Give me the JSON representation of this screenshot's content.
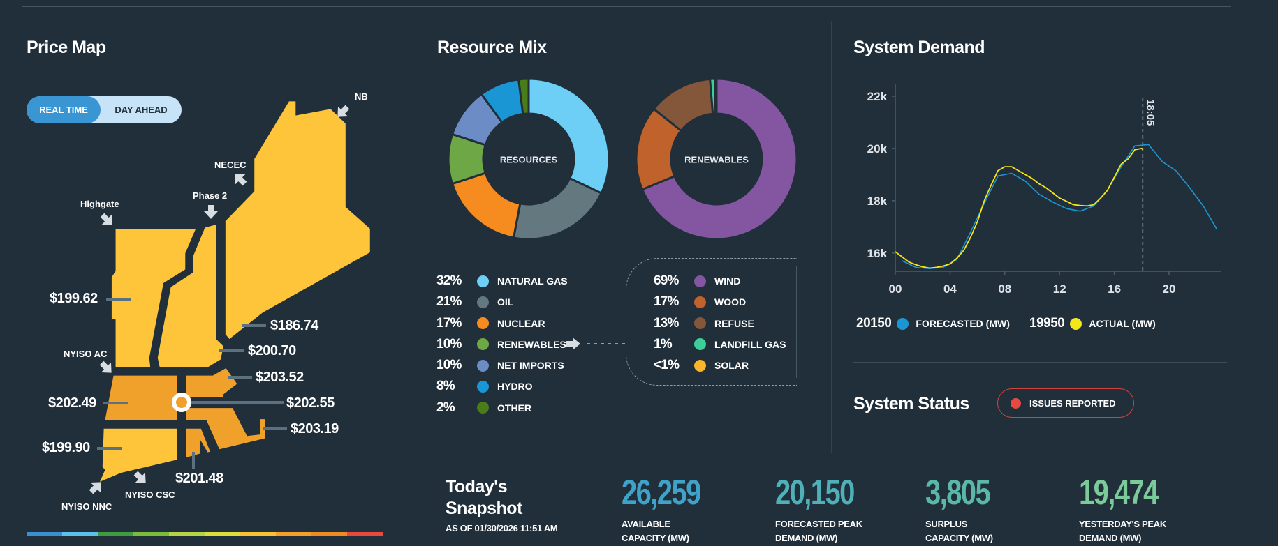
{
  "price_map": {
    "title": "Price Map",
    "toggle": {
      "real_time": "REAL TIME",
      "day_ahead": "DAY AHEAD",
      "active": "REAL TIME"
    },
    "interfaces": {
      "nb": "NB",
      "necec": "NECEC",
      "phase2": "Phase 2",
      "highgate": "Highgate",
      "nyiso_ac": "NYISO AC",
      "nyiso_nnc": "NYISO NNC",
      "nyiso_csc": "NYISO CSC"
    },
    "prices": {
      "vermont": "$199.62",
      "maine": "$186.74",
      "new_hampshire": "$200.70",
      "nema": "$203.52",
      "wcma": "$202.49",
      "hub": "$202.55",
      "sema": "$203.19",
      "connecticut": "$199.90",
      "rhode_island": "$201.48"
    },
    "scale_colors": [
      "#3a8fd0",
      "#5bc0eb",
      "#3f9a40",
      "#7cbb3a",
      "#b5d544",
      "#dede3a",
      "#f7c131",
      "#f2a02a",
      "#ee8a22",
      "#e8493f"
    ]
  },
  "resource_mix": {
    "title": "Resource Mix",
    "resources_label": "RESOURCES",
    "renewables_label": "RENEWABLES",
    "resources": [
      {
        "pct": "32%",
        "name": "NATURAL GAS",
        "value": 32,
        "color": "#6dcff6"
      },
      {
        "pct": "21%",
        "name": "OIL",
        "value": 21,
        "color": "#647880"
      },
      {
        "pct": "17%",
        "name": "NUCLEAR",
        "value": 17,
        "color": "#f68b1f"
      },
      {
        "pct": "10%",
        "name": "RENEWABLES",
        "value": 10,
        "color": "#6ea846"
      },
      {
        "pct": "10%",
        "name": "NET IMPORTS",
        "value": 10,
        "color": "#6b8cc4"
      },
      {
        "pct": "8%",
        "name": "HYDRO",
        "value": 8,
        "color": "#1b96d4"
      },
      {
        "pct": "2%",
        "name": "OTHER",
        "value": 2,
        "color": "#4a7c1a"
      }
    ],
    "renewables": [
      {
        "pct": "69%",
        "name": "WIND",
        "value": 69,
        "color": "#8456a1"
      },
      {
        "pct": "17%",
        "name": "WOOD",
        "value": 17,
        "color": "#c0622c"
      },
      {
        "pct": "13%",
        "name": "REFUSE",
        "value": 13,
        "color": "#85573a"
      },
      {
        "pct": "1%",
        "name": "LANDFILL GAS",
        "value": 1,
        "color": "#3ecf98"
      },
      {
        "pct": "<1%",
        "name": "SOLAR",
        "value": 0.3,
        "color": "#fbb52b"
      }
    ]
  },
  "system_demand": {
    "title": "System Demand",
    "forecast_value": "20150",
    "forecast_label": "FORECASTED (MW)",
    "actual_value": "19950",
    "actual_label": "ACTUAL (MW)",
    "now_label": "18:05",
    "chart_data": {
      "type": "line",
      "x_ticks": [
        "00",
        "04",
        "08",
        "12",
        "16",
        "20"
      ],
      "y_ticks": [
        "16k",
        "18k",
        "20k",
        "22k"
      ],
      "xlim": [
        0,
        24
      ],
      "ylim": [
        15300,
        22000
      ],
      "now_hour": 18.08,
      "series": [
        {
          "name": "FORECASTED (MW)",
          "color": "#1b96d4",
          "points": [
            [
              0.5,
              15700
            ],
            [
              1.5,
              15450
            ],
            [
              2.5,
              15400
            ],
            [
              3.5,
              15450
            ],
            [
              4.5,
              15750
            ],
            [
              5.5,
              16800
            ],
            [
              6.5,
              17900
            ],
            [
              7.5,
              18950
            ],
            [
              8.5,
              19050
            ],
            [
              9.5,
              18750
            ],
            [
              10.5,
              18250
            ],
            [
              11.5,
              17950
            ],
            [
              12.5,
              17700
            ],
            [
              13.5,
              17600
            ],
            [
              14.5,
              17800
            ],
            [
              15.5,
              18400
            ],
            [
              16.5,
              19300
            ],
            [
              17.5,
              20100
            ],
            [
              18.5,
              20150
            ],
            [
              19.5,
              19500
            ],
            [
              20.5,
              19150
            ],
            [
              21.5,
              18500
            ],
            [
              22.5,
              17800
            ],
            [
              23.5,
              16900
            ]
          ]
        },
        {
          "name": "ACTUAL (MW)",
          "color": "#f5e61a",
          "points": [
            [
              0,
              16050
            ],
            [
              0.5,
              15850
            ],
            [
              1,
              15650
            ],
            [
              1.5,
              15550
            ],
            [
              2,
              15470
            ],
            [
              2.5,
              15420
            ],
            [
              3,
              15450
            ],
            [
              3.5,
              15500
            ],
            [
              4,
              15580
            ],
            [
              4.5,
              15800
            ],
            [
              5,
              16100
            ],
            [
              5.5,
              16600
            ],
            [
              6,
              17200
            ],
            [
              6.5,
              18000
            ],
            [
              7,
              18600
            ],
            [
              7.5,
              19150
            ],
            [
              8,
              19300
            ],
            [
              8.5,
              19300
            ],
            [
              9,
              19150
            ],
            [
              9.5,
              19000
            ],
            [
              10,
              18850
            ],
            [
              10.5,
              18650
            ],
            [
              11,
              18500
            ],
            [
              11.5,
              18300
            ],
            [
              12,
              18100
            ],
            [
              12.5,
              17980
            ],
            [
              13,
              17850
            ],
            [
              13.5,
              17820
            ],
            [
              14,
              17800
            ],
            [
              14.5,
              17850
            ],
            [
              15,
              18100
            ],
            [
              15.5,
              18400
            ],
            [
              16,
              18900
            ],
            [
              16.5,
              19400
            ],
            [
              17,
              19600
            ],
            [
              17.5,
              19950
            ],
            [
              18,
              20000
            ],
            [
              18.08,
              19950
            ]
          ]
        }
      ]
    }
  },
  "system_status": {
    "title": "System Status",
    "status": "ISSUES REPORTED",
    "status_color": "#e8493f"
  },
  "snapshot": {
    "title_line1": "Today's",
    "title_line2": "Snapshot",
    "as_of": "AS OF 01/30/2026 11:51 AM",
    "metrics": [
      {
        "value": "26,259",
        "label1": "AVAILABLE",
        "label2": "CAPACITY (MW)",
        "color": "#3fa3c9"
      },
      {
        "value": "20,150",
        "label1": "FORECASTED PEAK",
        "label2": "DEMAND (MW)",
        "color": "#4fb0b8"
      },
      {
        "value": "3,805",
        "label1": "SURPLUS",
        "label2": "CAPACITY (MW)",
        "color": "#5bb8a8"
      },
      {
        "value": "19,474",
        "label1": "YESTERDAY'S PEAK",
        "label2": "DEMAND (MW)",
        "color": "#7cc99a"
      }
    ]
  }
}
